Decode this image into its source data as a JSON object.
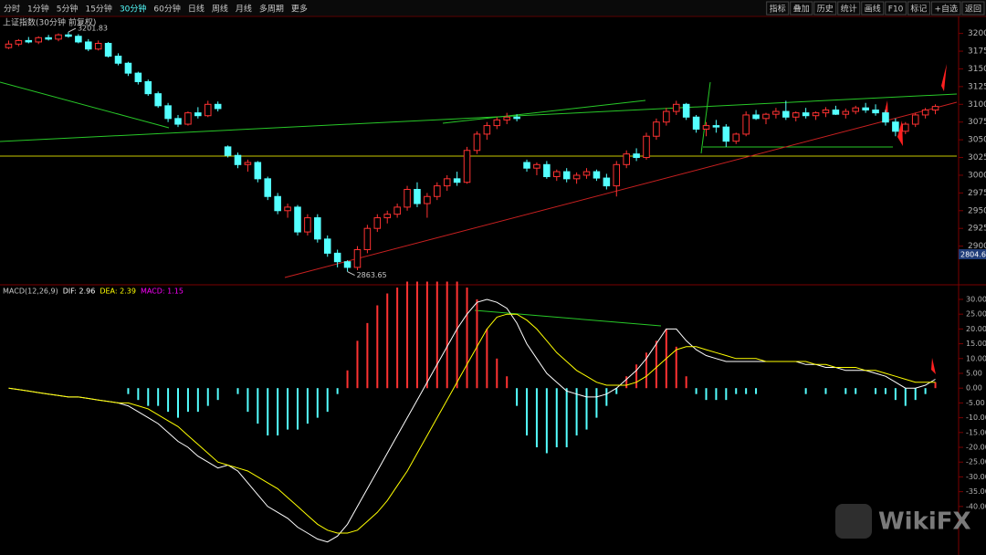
{
  "toolbar": {
    "left": [
      "分时",
      "1分钟",
      "5分钟",
      "15分钟",
      "30分钟",
      "60分钟",
      "日线",
      "周线",
      "月线",
      "多周期",
      "更多"
    ],
    "active": 4,
    "right": [
      "指标",
      "叠加",
      "历史",
      "统计",
      "画线",
      "F10",
      "标记",
      "+自选",
      "返回"
    ]
  },
  "watermark": "WikiFX",
  "chart_data": [
    {
      "type": "candlestick",
      "title": "上证指数(30分钟 前复权)",
      "ylim": [
        2848,
        3224
      ],
      "yticks": [
        2900,
        2925,
        2950,
        2975,
        3000,
        3025,
        3050,
        3075,
        3100,
        3125,
        3150,
        3175,
        3200
      ],
      "up_color": "#ff3232",
      "down_color": "#54ffff",
      "cursor_label": "2804.6",
      "annotations": [
        {
          "text": "3201.83",
          "index": 6
        },
        {
          "text": "2863.65",
          "index": 34
        }
      ],
      "candles": [
        [
          3180,
          3190,
          3178,
          3185
        ],
        [
          3185,
          3192,
          3182,
          3190
        ],
        [
          3190,
          3195,
          3186,
          3188
        ],
        [
          3188,
          3196,
          3185,
          3194
        ],
        [
          3194,
          3198,
          3190,
          3192
        ],
        [
          3192,
          3200,
          3189,
          3198
        ],
        [
          3198,
          3202,
          3194,
          3196
        ],
        [
          3196,
          3199,
          3186,
          3188
        ],
        [
          3188,
          3192,
          3175,
          3178
        ],
        [
          3178,
          3190,
          3176,
          3186
        ],
        [
          3186,
          3188,
          3166,
          3168
        ],
        [
          3168,
          3172,
          3155,
          3158
        ],
        [
          3158,
          3160,
          3140,
          3144
        ],
        [
          3144,
          3146,
          3128,
          3132
        ],
        [
          3132,
          3135,
          3112,
          3115
        ],
        [
          3115,
          3118,
          3095,
          3098
        ],
        [
          3098,
          3102,
          3075,
          3080
        ],
        [
          3080,
          3085,
          3068,
          3072
        ],
        [
          3072,
          3090,
          3070,
          3088
        ],
        [
          3088,
          3096,
          3080,
          3084
        ],
        [
          3084,
          3105,
          3082,
          3100
        ],
        [
          3100,
          3104,
          3090,
          3094
        ],
        [
          3040,
          3042,
          3025,
          3028
        ],
        [
          3028,
          3032,
          3010,
          3015
        ],
        [
          3015,
          3022,
          3005,
          3018
        ],
        [
          3018,
          3020,
          2990,
          2995
        ],
        [
          2995,
          2998,
          2965,
          2970
        ],
        [
          2970,
          2975,
          2945,
          2950
        ],
        [
          2950,
          2960,
          2940,
          2955
        ],
        [
          2955,
          2958,
          2915,
          2920
        ],
        [
          2920,
          2945,
          2915,
          2940
        ],
        [
          2940,
          2945,
          2905,
          2910
        ],
        [
          2910,
          2915,
          2885,
          2890
        ],
        [
          2890,
          2895,
          2870,
          2878
        ],
        [
          2878,
          2880,
          2864,
          2870
        ],
        [
          2870,
          2900,
          2866,
          2895
        ],
        [
          2895,
          2930,
          2890,
          2925
        ],
        [
          2925,
          2945,
          2920,
          2940
        ],
        [
          2940,
          2950,
          2932,
          2945
        ],
        [
          2945,
          2960,
          2940,
          2955
        ],
        [
          2955,
          2985,
          2950,
          2980
        ],
        [
          2980,
          2990,
          2955,
          2960
        ],
        [
          2960,
          2975,
          2940,
          2970
        ],
        [
          2970,
          2990,
          2965,
          2985
        ],
        [
          2985,
          3000,
          2978,
          2995
        ],
        [
          2995,
          3005,
          2985,
          2990
        ],
        [
          2990,
          3040,
          2988,
          3035
        ],
        [
          3035,
          3062,
          3030,
          3058
        ],
        [
          3058,
          3075,
          3050,
          3070
        ],
        [
          3070,
          3082,
          3065,
          3078
        ],
        [
          3078,
          3088,
          3072,
          3082
        ],
        [
          3082,
          3086,
          3076,
          3080
        ],
        [
          3018,
          3022,
          3005,
          3010
        ],
        [
          3010,
          3018,
          3000,
          3015
        ],
        [
          3015,
          3020,
          2995,
          2998
        ],
        [
          2998,
          3008,
          2992,
          3005
        ],
        [
          3005,
          3010,
          2990,
          2995
        ],
        [
          2995,
          3004,
          2988,
          3000
        ],
        [
          3000,
          3010,
          2995,
          3005
        ],
        [
          3005,
          3008,
          2992,
          2996
        ],
        [
          2996,
          3002,
          2980,
          2985
        ],
        [
          2985,
          3020,
          2970,
          3015
        ],
        [
          3015,
          3035,
          3010,
          3030
        ],
        [
          3030,
          3038,
          3020,
          3025
        ],
        [
          3025,
          3060,
          3022,
          3055
        ],
        [
          3055,
          3080,
          3050,
          3075
        ],
        [
          3075,
          3095,
          3070,
          3090
        ],
        [
          3090,
          3105,
          3085,
          3100
        ],
        [
          3100,
          3102,
          3078,
          3082
        ],
        [
          3082,
          3085,
          3060,
          3065
        ],
        [
          3065,
          3075,
          3055,
          3070
        ],
        [
          3070,
          3078,
          3060,
          3068
        ],
        [
          3068,
          3072,
          3040,
          3048
        ],
        [
          3048,
          3060,
          3044,
          3058
        ],
        [
          3058,
          3090,
          3055,
          3085
        ],
        [
          3085,
          3092,
          3078,
          3080
        ],
        [
          3080,
          3088,
          3072,
          3086
        ],
        [
          3086,
          3095,
          3080,
          3090
        ],
        [
          3090,
          3105,
          3078,
          3082
        ],
        [
          3082,
          3090,
          3076,
          3088
        ],
        [
          3088,
          3095,
          3080,
          3084
        ],
        [
          3084,
          3090,
          3078,
          3088
        ],
        [
          3088,
          3096,
          3082,
          3092
        ],
        [
          3092,
          3098,
          3085,
          3086
        ],
        [
          3086,
          3094,
          3080,
          3090
        ],
        [
          3090,
          3098,
          3086,
          3095
        ],
        [
          3095,
          3102,
          3088,
          3092
        ],
        [
          3092,
          3100,
          3084,
          3088
        ],
        [
          3088,
          3092,
          3070,
          3075
        ],
        [
          3075,
          3080,
          3055,
          3062
        ],
        [
          3062,
          3075,
          3058,
          3072
        ],
        [
          3072,
          3088,
          3068,
          3085
        ],
        [
          3085,
          3095,
          3080,
          3092
        ],
        [
          3092,
          3100,
          3086,
          3097
        ]
      ]
    },
    {
      "type": "macd",
      "title": "MACD(12,26,9)",
      "dif_label": "DIF: 2.96",
      "dea_label": "DEA: 2.39",
      "macd_label": "MACD: 1.15",
      "dif_color": "#ffffff",
      "dea_color": "#ffff00",
      "macd_label_color": "#ff00ff",
      "up_color": "#ff3232",
      "down_color": "#54ffff",
      "ylim": [
        -56.4,
        34
      ],
      "yticks": [
        {
          "value": 30,
          "label": "30.00"
        },
        {
          "value": 25,
          "label": "25.00"
        },
        {
          "value": 20,
          "label": "20.00"
        },
        {
          "value": 15,
          "label": "15.00"
        },
        {
          "value": 10,
          "label": "10.00"
        },
        {
          "value": 5,
          "label": "5.00"
        },
        {
          "value": 0,
          "label": "0.00"
        },
        {
          "value": -5,
          "label": "-5.00"
        },
        {
          "value": -10,
          "label": "-10.00"
        },
        {
          "value": -15,
          "label": "-15.00"
        },
        {
          "value": -20,
          "label": "-20.00"
        },
        {
          "value": -25,
          "label": "-25.00"
        },
        {
          "value": -30,
          "label": "-30.00"
        },
        {
          "value": -35,
          "label": "-35.00"
        },
        {
          "value": -40,
          "label": "-40.00"
        }
      ],
      "dif": [
        0,
        -0.5,
        -1,
        -1.5,
        -2,
        -2.5,
        -3,
        -3,
        -3.5,
        -4,
        -4.5,
        -5,
        -6,
        -8,
        -10,
        -12,
        -15,
        -18,
        -20,
        -23,
        -25,
        -27,
        -26,
        -28,
        -32,
        -36,
        -40,
        -42,
        -44,
        -47,
        -49,
        -51,
        -52,
        -50,
        -46,
        -40,
        -34,
        -28,
        -22,
        -16,
        -10,
        -4,
        2,
        8,
        14,
        20,
        25,
        29,
        30,
        29,
        27,
        22,
        15,
        10,
        5,
        2,
        -1,
        -2,
        -3,
        -3,
        -2,
        0,
        3,
        6,
        10,
        15,
        20,
        20,
        16,
        13,
        11,
        10,
        9,
        9,
        9,
        9,
        9,
        9,
        9,
        9,
        8,
        8,
        7,
        7,
        6,
        6,
        6,
        5,
        4,
        2,
        0,
        0,
        1,
        3
      ],
      "dea": [
        0,
        -0.5,
        -1,
        -1.5,
        -2,
        -2.5,
        -3,
        -3,
        -3.5,
        -4,
        -4.5,
        -5,
        -5,
        -6,
        -7,
        -9,
        -11,
        -13,
        -16,
        -19,
        -22,
        -25,
        -26,
        -27,
        -28,
        -30,
        -32,
        -34,
        -37,
        -40,
        -43,
        -46,
        -48,
        -49,
        -49,
        -48,
        -45,
        -42,
        -38,
        -33,
        -28,
        -22,
        -16,
        -10,
        -4,
        2,
        8,
        14,
        20,
        24,
        25,
        25,
        23,
        20,
        16,
        12,
        9,
        6,
        4,
        2,
        1,
        1,
        1,
        2,
        4,
        7,
        10,
        13,
        14,
        14,
        13,
        12,
        11,
        10,
        10,
        10,
        9,
        9,
        9,
        9,
        9,
        8,
        8,
        7,
        7,
        7,
        6,
        6,
        5,
        4,
        3,
        2,
        2,
        2
      ],
      "macd": [
        0,
        0,
        0,
        0,
        0,
        0,
        0,
        0,
        0,
        0,
        0,
        0,
        -2,
        -4,
        -6,
        -6,
        -8,
        -10,
        -8,
        -8,
        -6,
        -4,
        0,
        -2,
        -8,
        -12,
        -16,
        -16,
        -14,
        -14,
        -12,
        -10,
        -8,
        -2,
        6,
        16,
        22,
        28,
        32,
        34,
        36,
        36,
        36,
        36,
        36,
        36,
        34,
        30,
        20,
        10,
        4,
        -6,
        -16,
        -20,
        -22,
        -20,
        -20,
        -16,
        -14,
        -10,
        -6,
        -2,
        4,
        8,
        12,
        16,
        20,
        14,
        4,
        -2,
        -4,
        -4,
        -4,
        -2,
        -2,
        -2,
        0,
        0,
        0,
        0,
        -2,
        0,
        -2,
        0,
        -2,
        -2,
        0,
        -2,
        -2,
        -4,
        -6,
        -4,
        -2,
        2
      ]
    }
  ]
}
